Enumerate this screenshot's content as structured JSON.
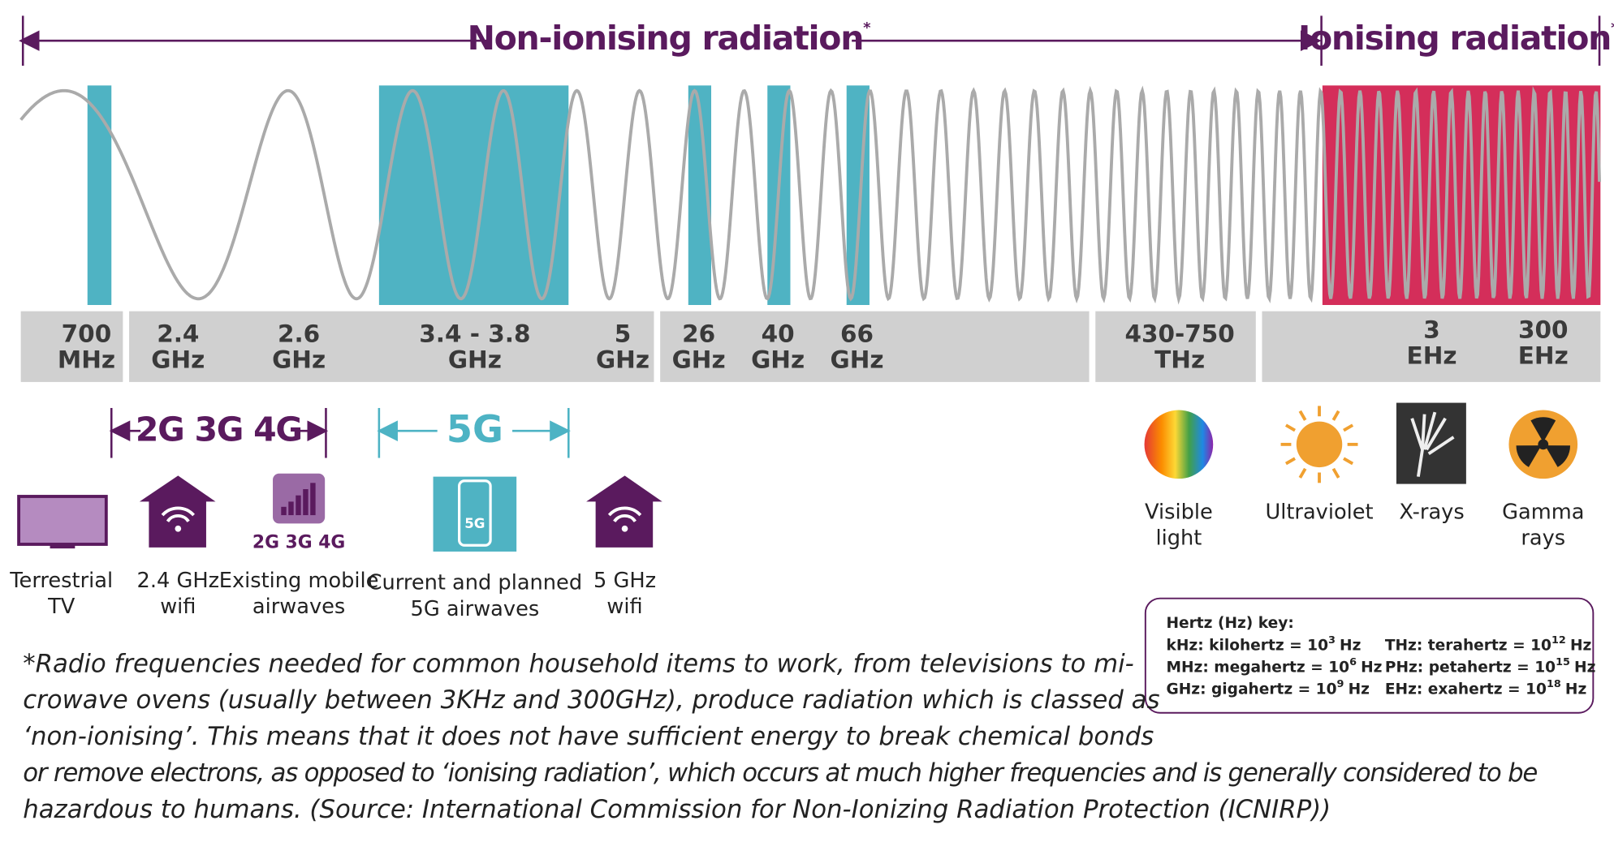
{
  "header": {
    "non_ionising": {
      "text": "Non-ionising radiation",
      "mark": "*"
    },
    "ionising": {
      "text": "Ionising radiation",
      "mark": "*"
    }
  },
  "frequencies": [
    {
      "value": "700",
      "unit": "MHz"
    },
    {
      "value": "2.4",
      "unit": "GHz"
    },
    {
      "value": "2.6",
      "unit": "GHz"
    },
    {
      "value": "3.4 - 3.8",
      "unit": "GHz"
    },
    {
      "value": "5",
      "unit": "GHz"
    },
    {
      "value": "26",
      "unit": "GHz"
    },
    {
      "value": "40",
      "unit": "GHz"
    },
    {
      "value": "66",
      "unit": "GHz"
    },
    {
      "value": "430-750",
      "unit": "THz"
    },
    {
      "value": "3",
      "unit": "EHz"
    },
    {
      "value": "300",
      "unit": "EHz"
    }
  ],
  "bands": {
    "legacy": "2G 3G 4G",
    "fiveg": "5G"
  },
  "icon_texts": {
    "mobile": "2G 3G 4G",
    "phone": "5G"
  },
  "uses": [
    {
      "lines": [
        "Terrestrial",
        "TV"
      ]
    },
    {
      "lines": [
        "2.4 GHz",
        "wifi"
      ]
    },
    {
      "lines": [
        "Existing mobile",
        "airwaves"
      ]
    },
    {
      "lines": [
        "Current and planned",
        "5G airwaves"
      ]
    },
    {
      "lines": [
        "5 GHz",
        "wifi"
      ]
    }
  ],
  "spectrum": [
    {
      "lines": [
        "Visible",
        "light"
      ]
    },
    {
      "lines": [
        "Ultraviolet"
      ]
    },
    {
      "lines": [
        "X-rays"
      ]
    },
    {
      "lines": [
        "Gamma",
        "rays"
      ]
    }
  ],
  "key": {
    "title": "Hertz (Hz) key:",
    "items": [
      {
        "text": "kHz: kilohertz = 10",
        "exp": "3",
        "unit": "Hz"
      },
      {
        "text": "MHz: megahertz = 10",
        "exp": "6",
        "unit": "Hz"
      },
      {
        "text": "GHz: gigahertz = 10",
        "exp": "9",
        "unit": "Hz"
      },
      {
        "text": "THz: terahertz = 10",
        "exp": "12",
        "unit": "Hz"
      },
      {
        "text": "PHz: petahertz = 10",
        "exp": "15",
        "unit": "Hz"
      },
      {
        "text": "EHz: exahertz = 10",
        "exp": "18",
        "unit": "Hz"
      }
    ]
  },
  "footnote": [
    "*Radio frequencies needed for common household items to work, from televisions to mi-",
    "crowave ovens (usually between 3KHz and 300GHz), produce radiation which is classed as",
    "‘non-ionising’. This means that it does not have sufficient energy to break chemical bonds",
    "or remove electrons, as opposed to ‘ionising radiation’, which occurs at much higher frequencies and is generally considered to be",
    "hazardous to humans. (Source: International Commission for Non-Ionizing Radiation Protection (ICNIRP))"
  ]
}
